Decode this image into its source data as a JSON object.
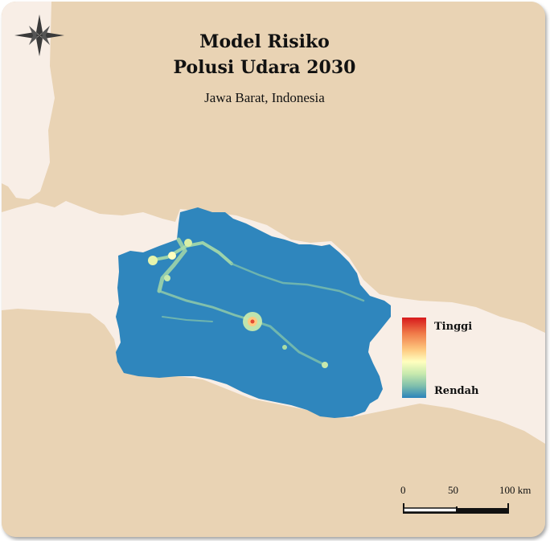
{
  "map": {
    "title_line1": "Model Risiko",
    "title_line2": "Polusi Udara 2030",
    "subtitle": "Jawa Barat, Indonesia",
    "legend": {
      "high_label": "Tinggi",
      "low_label": "Rendah",
      "colors": [
        "#d7191c",
        "#fdae61",
        "#ffffbf",
        "#abdda4",
        "#2b83ba"
      ]
    },
    "scale": {
      "tick_0": "0",
      "tick_1": "50",
      "tick_2": "100 km"
    },
    "compass_icon": "compass-rose-icon",
    "colors": {
      "sea": "#e9d3b4",
      "land": "#f8eee6",
      "region": "#2f86bd"
    }
  }
}
